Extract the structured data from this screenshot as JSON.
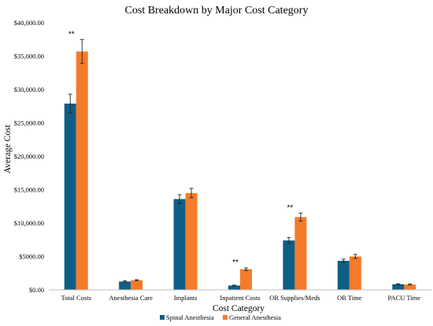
{
  "colors": {
    "spinal": "#0f5e85",
    "general": "#f47b2a",
    "axis": "#bfbfbf",
    "errorbar": "#222222"
  },
  "chart_data": {
    "type": "bar",
    "title": "Cost Breakdown by Major Cost Category",
    "xlabel": "Cost Category",
    "ylabel": "Average Cost",
    "ylim": [
      0,
      40000
    ],
    "grid": false,
    "legend_position": "bottom",
    "y_ticks": [
      {
        "value": 0,
        "label": "$0.00"
      },
      {
        "value": 5000,
        "label": "$5000.00"
      },
      {
        "value": 10000,
        "label": "$10,000.00"
      },
      {
        "value": 15000,
        "label": "$15,000.00"
      },
      {
        "value": 20000,
        "label": "$20,000.00"
      },
      {
        "value": 25000,
        "label": "$25,000.00"
      },
      {
        "value": 30000,
        "label": "$30,000.00"
      },
      {
        "value": 35000,
        "label": "$35,000.00"
      },
      {
        "value": 40000,
        "label": "$40,000.00"
      }
    ],
    "categories": [
      "Total Costs",
      "Anesthesia Care",
      "Implants",
      "Inpatient Costs",
      "OR Supplies/Meds",
      "OR Time",
      "PACU Time"
    ],
    "series": [
      {
        "name": "Spinal Anesthesia",
        "color": "#0f5e85",
        "values": [
          27900,
          1250,
          13600,
          650,
          7400,
          4350,
          850
        ],
        "errors": [
          1400,
          100,
          650,
          60,
          450,
          250,
          80
        ]
      },
      {
        "name": "General Anesthesia",
        "color": "#f47b2a",
        "values": [
          35700,
          1450,
          14500,
          3100,
          10900,
          5000,
          800
        ],
        "errors": [
          1800,
          80,
          700,
          200,
          600,
          300,
          70
        ]
      }
    ],
    "annotations": [
      {
        "category_index": 0,
        "text": "**"
      },
      {
        "category_index": 3,
        "text": "**"
      },
      {
        "category_index": 4,
        "text": "**"
      }
    ]
  }
}
